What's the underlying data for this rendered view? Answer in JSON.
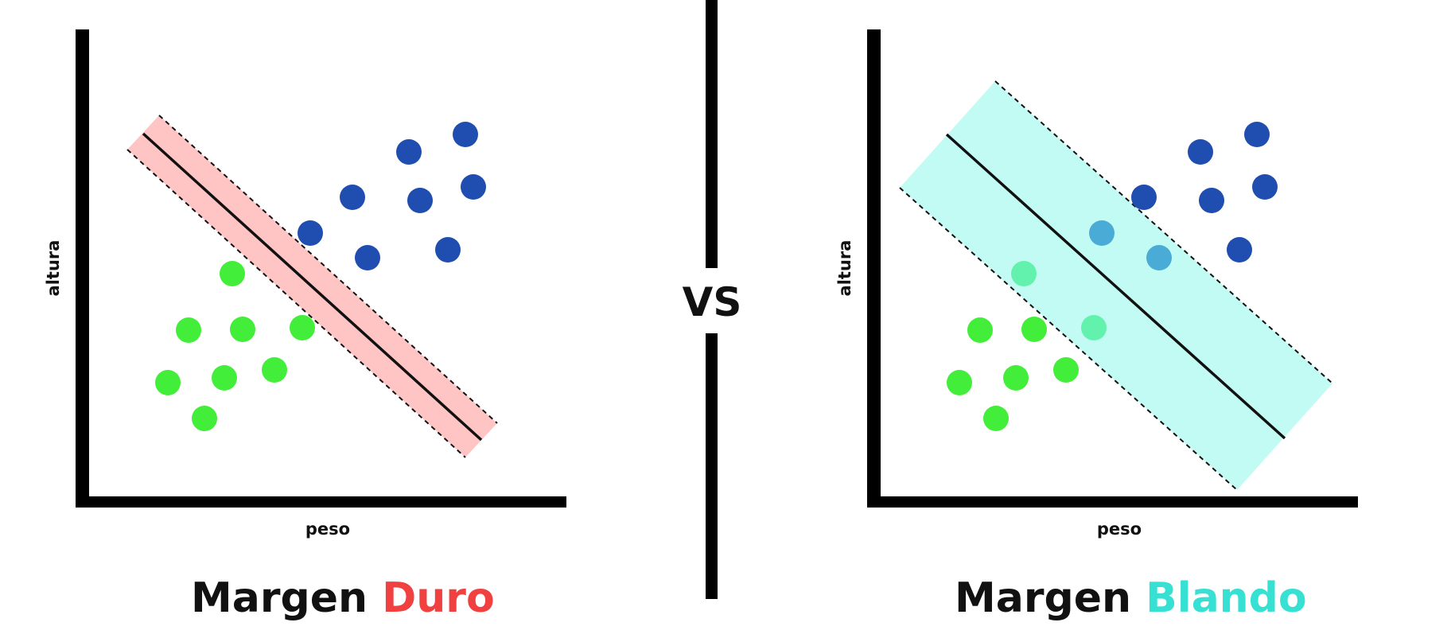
{
  "left_panel": {
    "ylabel": "altura",
    "xlabel": "peso",
    "title_word": "Margen",
    "title_accent": "Duro",
    "accent_color": "#f04040",
    "band_color": "#ffc4c4"
  },
  "right_panel": {
    "ylabel": "altura",
    "xlabel": "peso",
    "title_word": "Margen",
    "title_accent": "Blando",
    "accent_color": "#36e0d2",
    "band_color": "#c2fbf4"
  },
  "divider_label": "VS",
  "class_colors": {
    "blue": "#1f4db0",
    "green": "#42ee3a",
    "blue_in_margin": "#4aabd6",
    "green_in_margin": "#63f2ad"
  }
}
